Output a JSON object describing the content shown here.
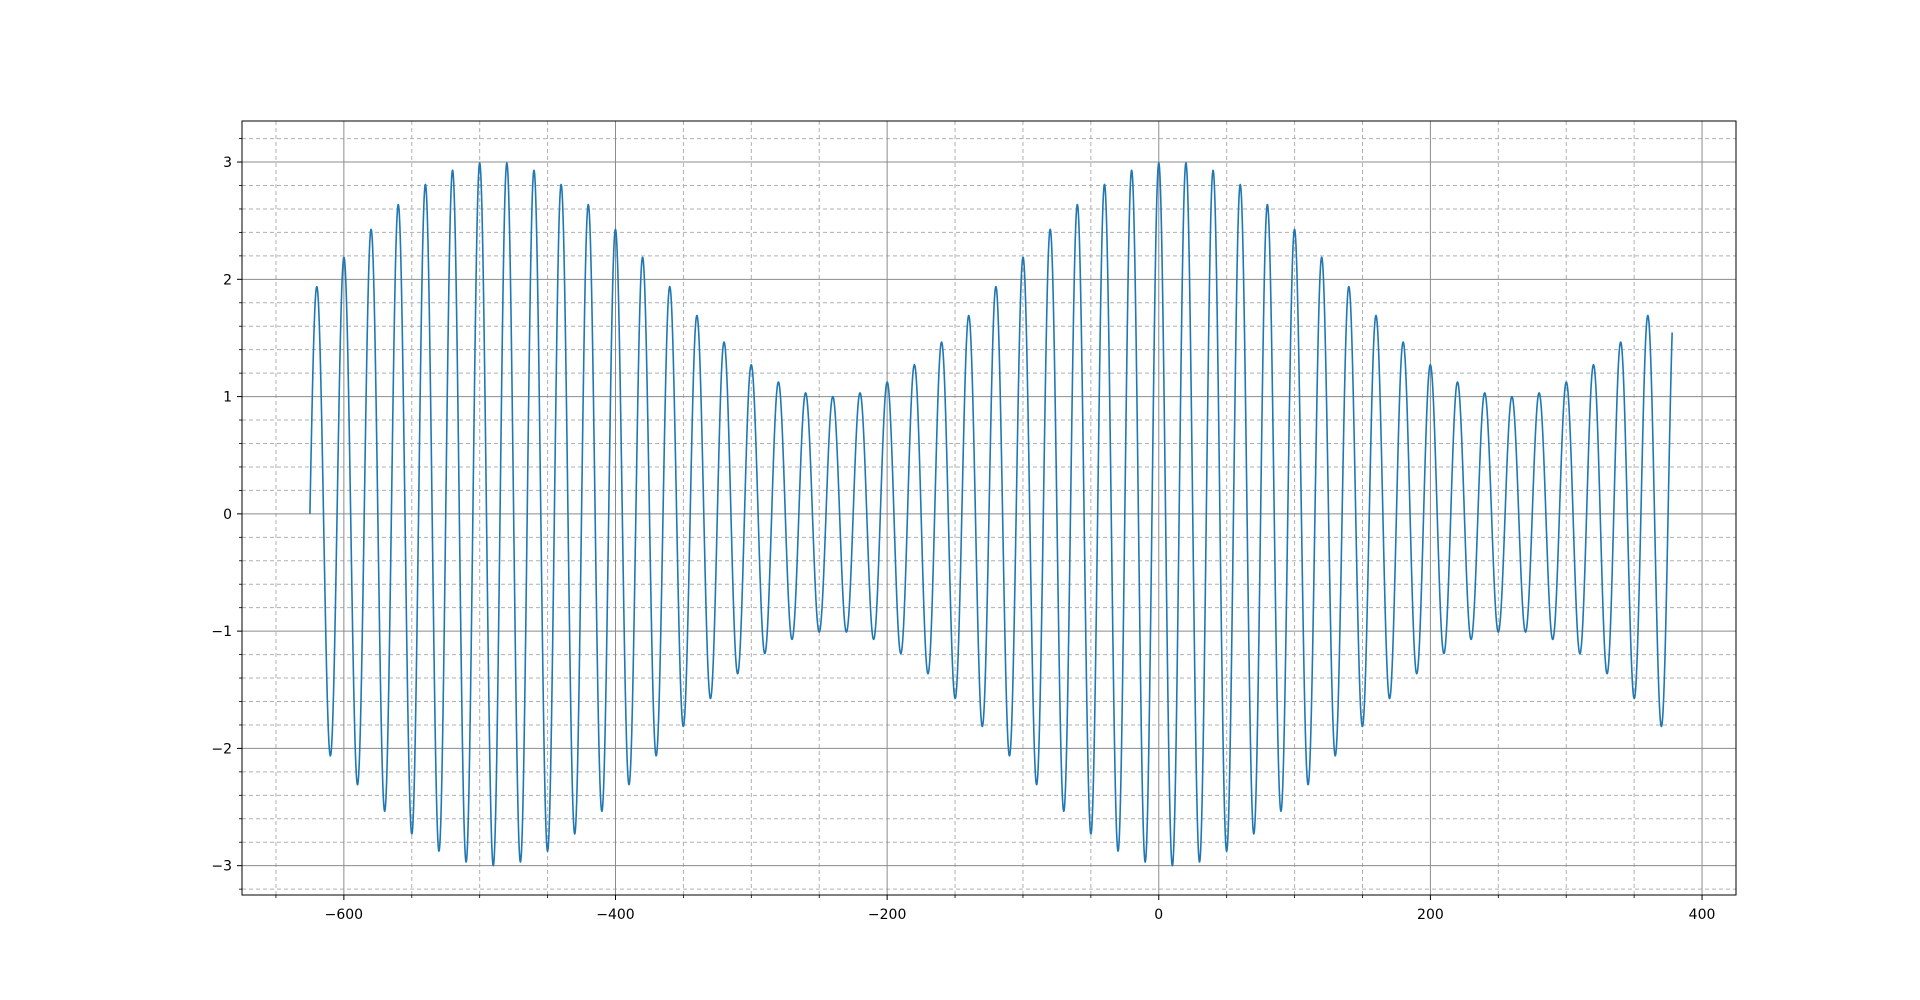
{
  "chart_data": {
    "type": "line",
    "title": "",
    "xlabel": "",
    "ylabel": "",
    "xlim": [
      -675,
      425
    ],
    "ylim": [
      -3.25,
      3.35
    ],
    "x_major_ticks": [
      -600,
      -400,
      -200,
      0,
      200,
      400
    ],
    "x_minor_ticks": [
      -650,
      -550,
      -500,
      -450,
      -350,
      -300,
      -250,
      -150,
      -100,
      -50,
      50,
      100,
      150,
      250,
      300,
      350
    ],
    "x_tick_labels": [
      "−600",
      "−400",
      "−200",
      "0",
      "200",
      "400"
    ],
    "y_major_ticks": [
      -3,
      -2,
      -1,
      0,
      1,
      2,
      3
    ],
    "y_minor_ticks": [
      -3.2,
      -2.8,
      -2.6,
      -2.4,
      -2.2,
      -1.8,
      -1.6,
      -1.4,
      -1.2,
      -0.8,
      -0.6,
      -0.4,
      -0.2,
      0.2,
      0.4,
      0.6,
      0.8,
      1.2,
      1.4,
      1.6,
      1.8,
      2.2,
      2.4,
      2.6,
      2.8,
      3.2
    ],
    "y_tick_labels": [
      "−3",
      "−2",
      "−1",
      "0",
      "1",
      "2",
      "3"
    ],
    "grid": {
      "major": true,
      "minor": true
    },
    "series": [
      {
        "color": "#1f77b4",
        "x_range": [
          -625,
          378
        ],
        "carrier_period": 20,
        "carrier_peak_x": 20,
        "carrier_amplitude_max": 3.0,
        "carrier_amplitude_min": 1.0,
        "envelope_period": 500,
        "envelope_peak_x": 10
      }
    ]
  }
}
